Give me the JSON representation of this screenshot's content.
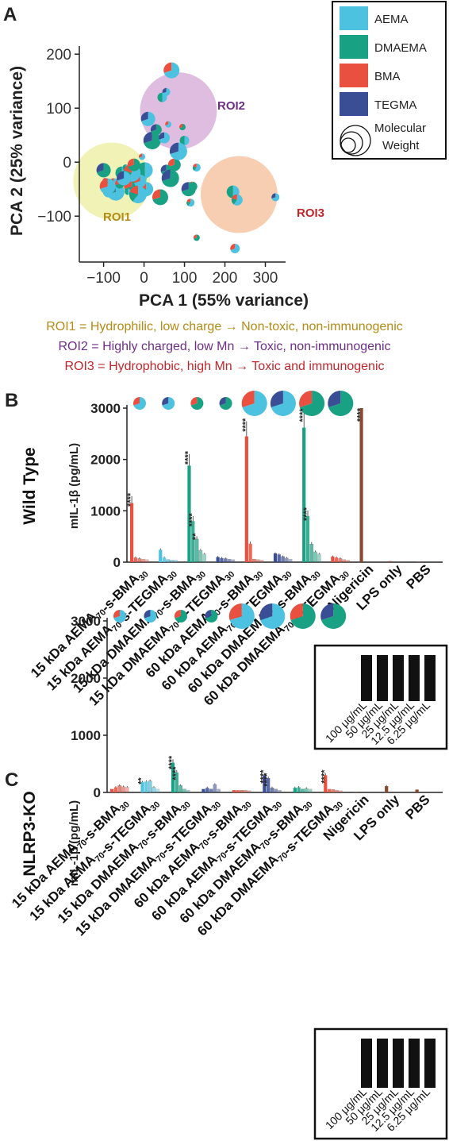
{
  "panels": {
    "a": "A",
    "b": "B",
    "c": "C"
  },
  "colors": {
    "AEMA": "#4cc1e0",
    "DMAEMA": "#18a183",
    "BMA": "#e9503f",
    "TEGMA": "#3a4e96",
    "brown": "#8a4a32",
    "roi1": "#eef0a8",
    "roi2": "#d9b2dc",
    "roi3": "#f7c5a6",
    "roi1_text": "#b38b16",
    "roi2_text": "#6d2f87",
    "roi3_text": "#c0272d"
  },
  "legend_a": {
    "items": [
      "AEMA",
      "DMAEMA",
      "BMA",
      "TEGMA"
    ],
    "mw_label_1": "Molecular",
    "mw_label_2": "Weight"
  },
  "roi_labels": {
    "roi1": "ROI1",
    "roi2": "ROI2",
    "roi3": "ROI3"
  },
  "captions": [
    "ROI1 = Hydrophilic, low charge → Non-toxic, non-immunogenic",
    "ROI2 = Highly charged, low Mn → Toxic, non-immunogenic",
    "ROI3 = Hydrophobic, high Mn → Toxic and immunogenic"
  ],
  "side_labels": {
    "b": "Wild Type",
    "c": "NLRP3-KO"
  },
  "bar_ylabel": "mIL-1β (pg/mL)",
  "categories": [
    "15 kDa AEMA70-s-BMA30",
    "15 kDa AEMA70-s-TEGMA30",
    "15 kDa DMAEMA70-s-BMA30",
    "15 kDa DMAEMA70-s-TEGMA30",
    "60 kDa AEMA70-s-BMA30",
    "60 kDa AEMA70-s-TEGMA30",
    "60 kDa DMAEMA70-s-BMA30",
    "60 kDa DMAEMA70-s-TEGMA30",
    "Nigericin",
    "LPS only",
    "PBS"
  ],
  "concentrations": [
    "100 μg/mL",
    "50 μg/mL",
    "25 μg/mL",
    "12.5 μg/mL",
    "6.25 μg/mL"
  ],
  "chart_data": [
    {
      "type": "scatter",
      "xlabel": "PCA 1 (55% variance)",
      "ylabel": "PCA 2 (25% variance)",
      "xlim": [
        -160,
        350
      ],
      "ylim": [
        -185,
        215
      ],
      "xticks": [
        -100,
        0,
        100,
        200,
        300
      ],
      "yticks": [
        -100,
        0,
        100,
        200
      ],
      "legend_position": "top-right",
      "series": [
        {
          "name": "AEMA",
          "points": [
            [
              -95,
              -35
            ],
            [
              -70,
              -55
            ],
            [
              -30,
              -45
            ],
            [
              -100,
              -15
            ],
            [
              -55,
              -20
            ],
            [
              -75,
              -40
            ],
            [
              -5,
              -30
            ],
            [
              55,
              130
            ],
            [
              95,
              65
            ],
            [
              20,
              40
            ],
            [
              2,
              -15
            ],
            [
              5,
              -50
            ],
            [
              -10,
              -35
            ],
            [
              50,
              45
            ],
            [
              120,
              -45
            ]
          ]
        },
        {
          "name": "DMAEMA",
          "points": [
            [
              -88,
              -55
            ],
            [
              -60,
              -40
            ],
            [
              -20,
              -58
            ],
            [
              -45,
              -10
            ],
            [
              -30,
              -20
            ],
            [
              68,
              170
            ],
            [
              10,
              80
            ],
            [
              75,
              -5
            ],
            [
              55,
              -15
            ],
            [
              100,
              40
            ],
            [
              130,
              -10
            ],
            [
              60,
              70
            ],
            [
              85,
              20
            ]
          ]
        },
        {
          "name": "BMA",
          "points": [
            [
              40,
              -65
            ],
            [
              110,
              -50
            ],
            [
              220,
              -55
            ],
            [
              230,
              -70
            ],
            [
              225,
              -160
            ],
            [
              325,
              -65
            ],
            [
              130,
              -140
            ],
            [
              65,
              -30
            ]
          ]
        },
        {
          "name": "TEGMA",
          "points": [
            [
              -80,
              -50
            ],
            [
              -40,
              -55
            ],
            [
              -15,
              -60
            ],
            [
              -90,
              -45
            ],
            [
              -50,
              -30
            ],
            [
              -25,
              -5
            ],
            [
              30,
              60
            ],
            [
              45,
              120
            ],
            [
              115,
              -75
            ],
            [
              -5,
              10
            ]
          ]
        }
      ],
      "regions": [
        {
          "name": "ROI1",
          "cx": -80,
          "cy": -35,
          "r": 95
        },
        {
          "name": "ROI2",
          "cx": 85,
          "cy": 95,
          "r": 95
        },
        {
          "name": "ROI3",
          "cx": 235,
          "cy": -60,
          "r": 95
        }
      ]
    },
    {
      "type": "bar",
      "title": "Wild Type",
      "ylabel": "mIL-1β (pg/mL)",
      "ylim": [
        0,
        3000
      ],
      "yticks": [
        0,
        1000,
        2000,
        3000
      ],
      "categories": [
        "15 kDa AEMA70-s-BMA30",
        "15 kDa AEMA70-s-TEGMA30",
        "15 kDa DMAEMA70-s-BMA30",
        "15 kDa DMAEMA70-s-TEGMA30",
        "60 kDa AEMA70-s-BMA30",
        "60 kDa AEMA70-s-TEGMA30",
        "60 kDa DMAEMA70-s-BMA30",
        "60 kDa DMAEMA70-s-TEGMA30",
        "Nigericin",
        "LPS only",
        "PBS"
      ],
      "series": [
        {
          "name": "100 μg/mL",
          "values": [
            1150,
            240,
            1880,
            100,
            2450,
            170,
            2620,
            110,
            3000,
            20,
            10
          ]
        },
        {
          "name": "50 μg/mL",
          "values": [
            90,
            90,
            800,
            80,
            360,
            150,
            900,
            90,
            null,
            null,
            null
          ]
        },
        {
          "name": "25 μg/mL",
          "values": [
            70,
            50,
            450,
            70,
            60,
            110,
            350,
            70,
            null,
            null,
            null
          ]
        },
        {
          "name": "12.5 μg/mL",
          "values": [
            60,
            40,
            230,
            60,
            50,
            80,
            200,
            50,
            null,
            null,
            null
          ]
        },
        {
          "name": "6.25 μg/mL",
          "values": [
            50,
            40,
            160,
            50,
            40,
            60,
            160,
            40,
            null,
            null,
            null
          ]
        }
      ],
      "significance": [
        {
          "category": 0,
          "series": 0,
          "label": "****"
        },
        {
          "category": 2,
          "series": 0,
          "label": "****"
        },
        {
          "category": 2,
          "series": 1,
          "label": "****"
        },
        {
          "category": 2,
          "series": 2,
          "label": "**"
        },
        {
          "category": 4,
          "series": 0,
          "label": "****"
        },
        {
          "category": 6,
          "series": 0,
          "label": "****"
        },
        {
          "category": 6,
          "series": 1,
          "label": "****"
        },
        {
          "category": 8,
          "series": 0,
          "label": "****"
        }
      ]
    },
    {
      "type": "bar",
      "title": "NLRP3-KO",
      "ylabel": "mIL-1β (pg/mL)",
      "ylim": [
        0,
        3000
      ],
      "yticks": [
        0,
        1000,
        2000,
        3000
      ],
      "categories": [
        "15 kDa AEMA70-s-BMA30",
        "15 kDa AEMA70-s-TEGMA30",
        "15 kDa DMAEMA70-s-BMA30",
        "15 kDa DMAEMA70-s-TEGMA30",
        "60 kDa AEMA70-s-BMA30",
        "60 kDa AEMA70-s-TEGMA30",
        "60 kDa DMAEMA70-s-BMA30",
        "60 kDa DMAEMA70-s-TEGMA30",
        "Nigericin",
        "LPS only",
        "PBS"
      ],
      "series": [
        {
          "name": "100 μg/mL",
          "values": [
            60,
            180,
            520,
            60,
            40,
            300,
            80,
            300,
            10,
            110,
            50
          ]
        },
        {
          "name": "50 μg/mL",
          "values": [
            90,
            190,
            350,
            80,
            40,
            250,
            90,
            60,
            null,
            null,
            null
          ]
        },
        {
          "name": "25 μg/mL",
          "values": [
            120,
            200,
            120,
            60,
            40,
            80,
            60,
            50,
            null,
            null,
            null
          ]
        },
        {
          "name": "12.5 μg/mL",
          "values": [
            100,
            90,
            60,
            140,
            40,
            60,
            70,
            40,
            null,
            null,
            null
          ]
        },
        {
          "name": "6.25 μg/mL",
          "values": [
            90,
            60,
            40,
            60,
            30,
            40,
            60,
            30,
            null,
            null,
            null
          ]
        }
      ],
      "significance": [
        {
          "category": 1,
          "series": 0,
          "label": "**"
        },
        {
          "category": 2,
          "series": 0,
          "label": "****"
        },
        {
          "category": 2,
          "series": 1,
          "label": "****"
        },
        {
          "category": 5,
          "series": 0,
          "label": "****"
        },
        {
          "category": 5,
          "series": 1,
          "label": "****"
        },
        {
          "category": 7,
          "series": 0,
          "label": "****"
        }
      ]
    }
  ]
}
